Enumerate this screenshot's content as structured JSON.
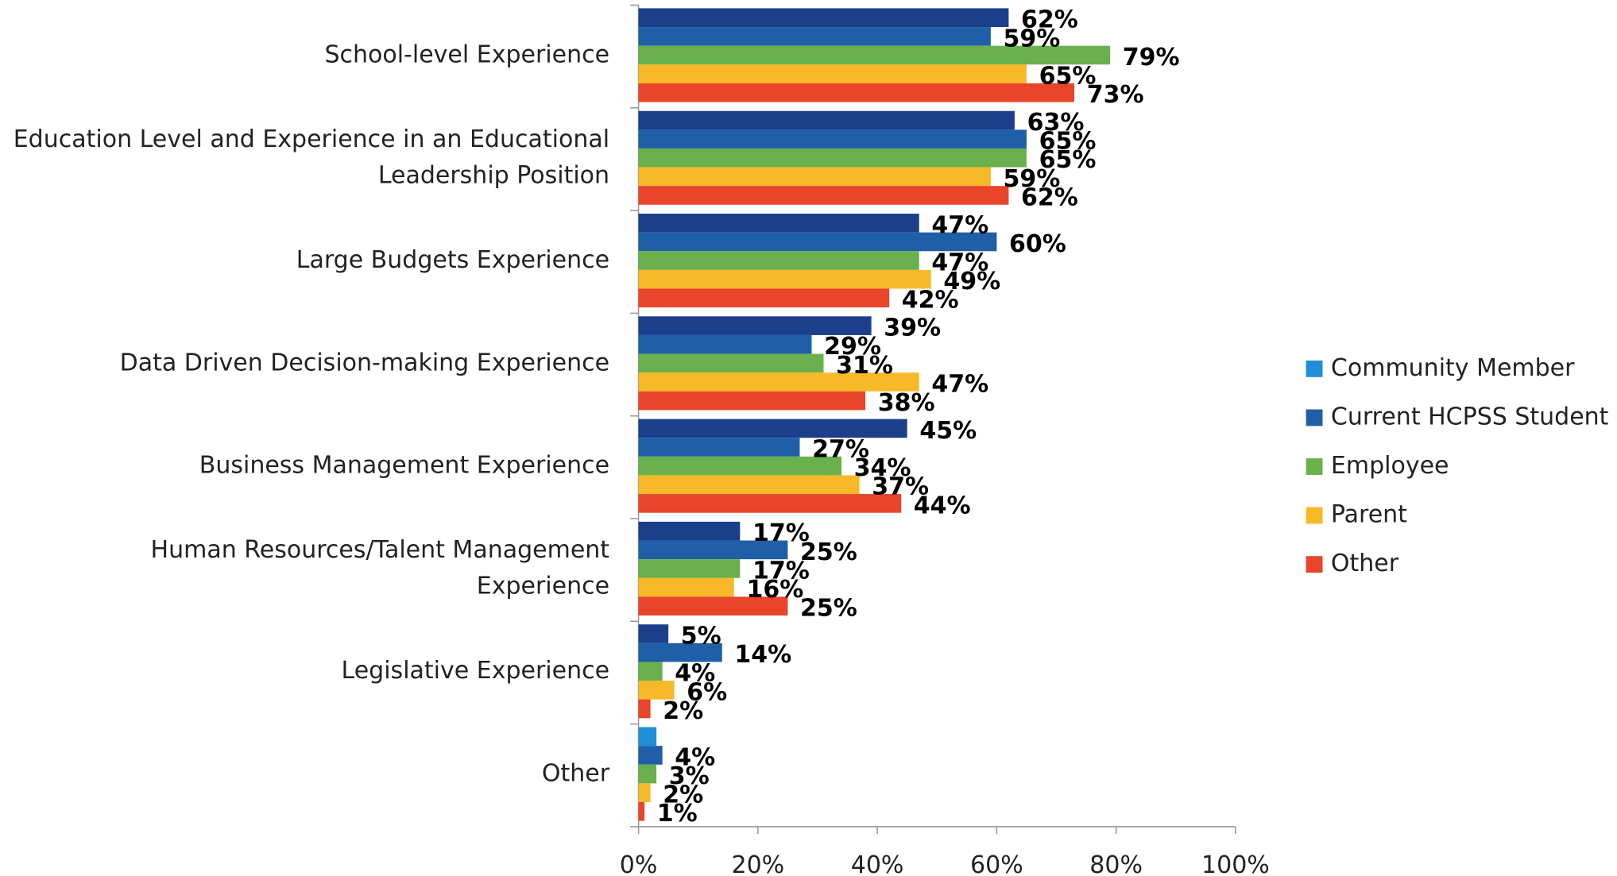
{
  "chart_data": {
    "type": "bar",
    "orientation": "horizontal",
    "categories": [
      [
        "School-level Experience"
      ],
      [
        "Education Level and Experience in an Educational",
        "Leadership Position"
      ],
      [
        "Large Budgets Experience"
      ],
      [
        "Data Driven Decision-making Experience"
      ],
      [
        "Business Management Experience"
      ],
      [
        "Human Resources/Talent Management",
        "Experience"
      ],
      [
        "Legislative Experience"
      ],
      [
        "Other"
      ]
    ],
    "series": [
      {
        "name": "Community Member",
        "color": "#1f8fd8",
        "colors": [
          "#1b3f8b",
          "#1b3f8b",
          "#1b3f8b",
          "#1b3f8b",
          "#1b3f8b",
          "#1b3f8b",
          "#1b3f8b",
          "#1f8fd8"
        ],
        "values": [
          62,
          63,
          47,
          39,
          45,
          17,
          5,
          3
        ],
        "value_labels": [
          "62%",
          "63%",
          "47%",
          "39%",
          "45%",
          "17%",
          "5%",
          null
        ]
      },
      {
        "name": "Current HCPSS Student",
        "color": "#1f5fa8",
        "values": [
          59,
          65,
          60,
          29,
          27,
          25,
          14,
          4
        ],
        "value_labels": [
          "59%",
          "65%",
          "60%",
          "29%",
          "27%",
          "25%",
          "14%",
          "4%"
        ]
      },
      {
        "name": "Employee",
        "color": "#6ab04c",
        "values": [
          79,
          65,
          47,
          31,
          34,
          17,
          4,
          3
        ],
        "value_labels": [
          "79%",
          "65%",
          "47%",
          "31%",
          "34%",
          "17%",
          "4%",
          "3%"
        ]
      },
      {
        "name": "Parent",
        "color": "#f7b928",
        "values": [
          65,
          59,
          49,
          47,
          37,
          16,
          6,
          2
        ],
        "value_labels": [
          "65%",
          "59%",
          "49%",
          "47%",
          "37%",
          "16%",
          "6%",
          "2%"
        ]
      },
      {
        "name": "Other",
        "color": "#e8452a",
        "values": [
          73,
          62,
          42,
          38,
          44,
          25,
          2,
          1
        ],
        "value_labels": [
          "73%",
          "62%",
          "42%",
          "38%",
          "44%",
          "25%",
          "2%",
          "1%"
        ]
      }
    ],
    "xlim": [
      0,
      100
    ],
    "xticks": [
      {
        "value": 0,
        "label": "0%"
      },
      {
        "value": 20,
        "label": "20%"
      },
      {
        "value": 40,
        "label": "40%"
      },
      {
        "value": 60,
        "label": "60%"
      },
      {
        "value": 80,
        "label": "80%"
      },
      {
        "value": 100,
        "label": "100%"
      }
    ],
    "grid": false,
    "legend": "right"
  }
}
